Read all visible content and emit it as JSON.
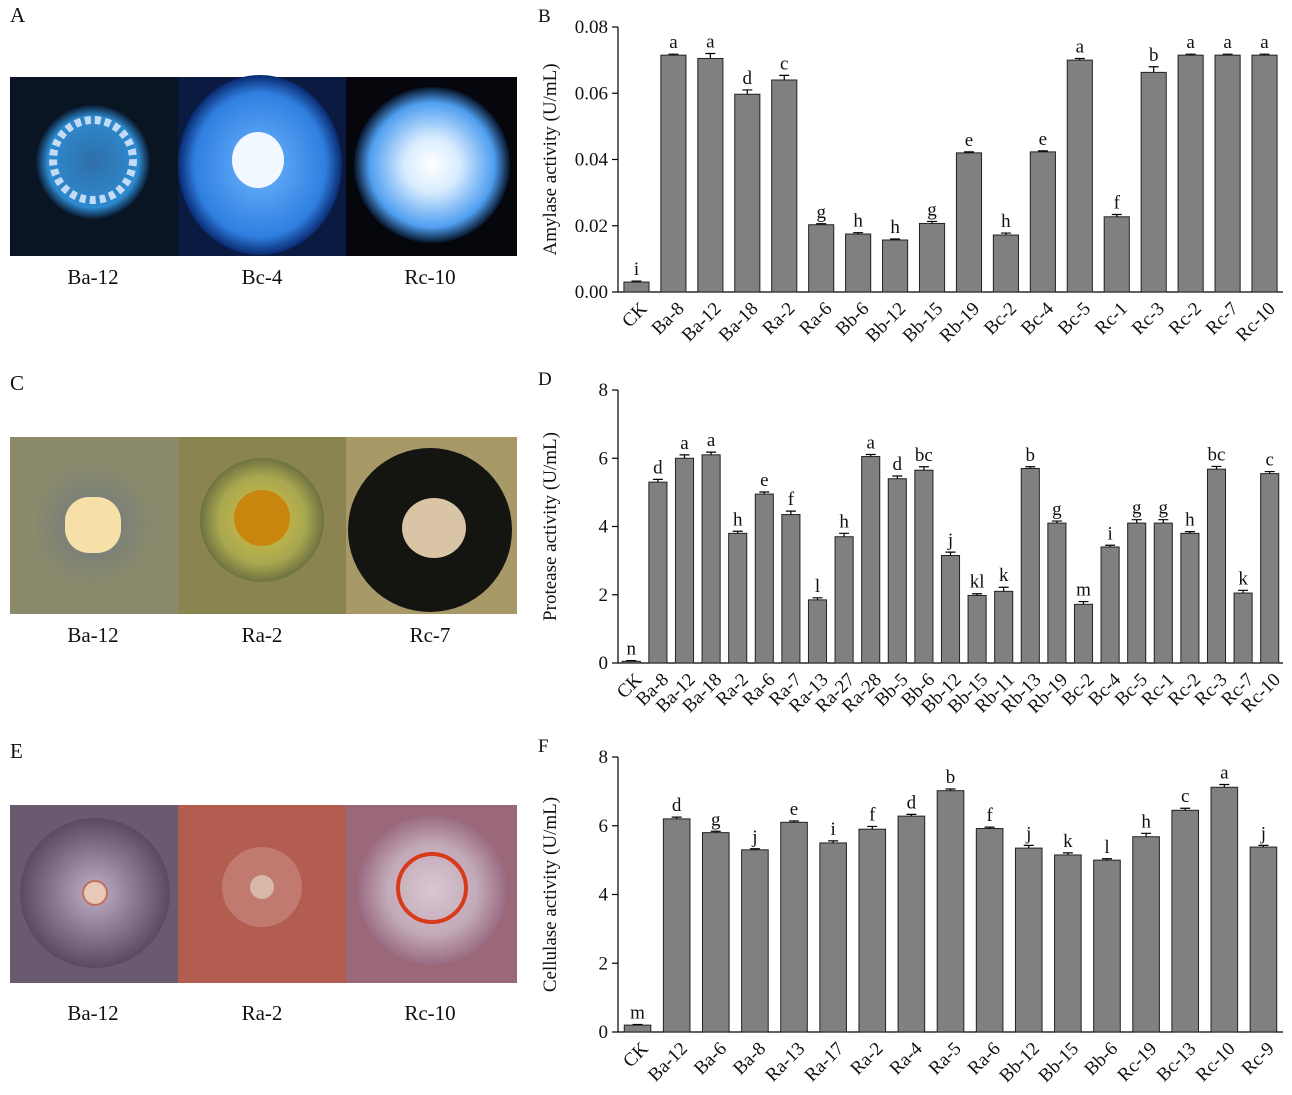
{
  "photo_panels": [
    {
      "label": "A",
      "captions": [
        "Ba-12",
        "Bc-4",
        "Rc-10"
      ]
    },
    {
      "label": "C",
      "captions": [
        "Ba-12",
        "Ra-2",
        "Rc-7"
      ]
    },
    {
      "label": "E",
      "captions": [
        "Ba-12",
        "Ra-2",
        "Rc-10"
      ]
    }
  ],
  "chart_data": [
    {
      "type": "bar",
      "panel": "B",
      "ylabel": "Amylase activity (U/mL)",
      "color": "#808080",
      "categories": [
        "CK",
        "Ba-8",
        "Ba-12",
        "Ba-18",
        "Ra-2",
        "Ra-6",
        "Bb-6",
        "Bb-12",
        "Bb-15",
        "Rb-19",
        "Bc-2",
        "Bc-4",
        "Bc-5",
        "Rc-1",
        "Rc-3",
        "Rc-2",
        "Rc-7",
        "Rc-10"
      ],
      "values": [
        0.003,
        0.0715,
        0.0705,
        0.0597,
        0.064,
        0.0203,
        0.0175,
        0.0157,
        0.0207,
        0.042,
        0.0172,
        0.0423,
        0.07,
        0.0227,
        0.0663,
        0.0715,
        0.0715,
        0.0715
      ],
      "errors": [
        0.0003,
        0.0003,
        0.0015,
        0.0013,
        0.0014,
        0.0003,
        0.0004,
        0.0003,
        0.0006,
        0.0003,
        0.0006,
        0.0003,
        0.0005,
        0.0007,
        0.0017,
        0.0003,
        0.0003,
        0.0003
      ],
      "annotations": [
        "i",
        "a",
        "a",
        "d",
        "c",
        "g",
        "h",
        "h",
        "g",
        "e",
        "h",
        "e",
        "a",
        "f",
        "b",
        "a",
        "a",
        "a"
      ],
      "ylim": [
        0,
        0.08
      ],
      "yticks": [
        {
          "value": 0,
          "label": "0.00"
        },
        0.02,
        0.04,
        0.06,
        0.08
      ]
    },
    {
      "type": "bar",
      "panel": "D",
      "ylabel": "Protease activity (U/mL)",
      "color": "#808080",
      "categories": [
        "CK",
        "Ba-8",
        "Ba-12",
        "Ba-18",
        "Ra-2",
        "Ra-6",
        "Ra-7",
        "Ra-13",
        "Ra-27",
        "Ra-28",
        "Bb-5",
        "Bb-6",
        "Bb-12",
        "Bb-15",
        "Rb-11",
        "Rb-13",
        "Rb-19",
        "Bc-2",
        "Bc-4",
        "Bc-5",
        "Rc-1",
        "Rc-2",
        "Rc-3",
        "Rc-7",
        "Rc-10"
      ],
      "values": [
        0.05,
        5.3,
        6.0,
        6.1,
        3.8,
        4.95,
        4.35,
        1.85,
        3.7,
        6.05,
        5.4,
        5.65,
        3.15,
        1.98,
        2.1,
        5.7,
        4.1,
        1.72,
        3.4,
        4.1,
        4.1,
        3.8,
        5.68,
        2.05,
        5.55
      ],
      "errors": [
        0.02,
        0.08,
        0.1,
        0.08,
        0.06,
        0.06,
        0.1,
        0.06,
        0.1,
        0.06,
        0.08,
        0.1,
        0.1,
        0.05,
        0.12,
        0.05,
        0.06,
        0.08,
        0.05,
        0.1,
        0.1,
        0.05,
        0.08,
        0.08,
        0.06
      ],
      "annotations": [
        "n",
        "d",
        "a",
        "a",
        "h",
        "e",
        "f",
        "l",
        "h",
        "a",
        "d",
        "bc",
        "j",
        "kl",
        "k",
        "b",
        "g",
        "m",
        "i",
        "g",
        "g",
        "h",
        "bc",
        "k",
        "c"
      ],
      "ylim": [
        0,
        8
      ],
      "yticks": [
        0,
        2,
        4,
        6,
        8
      ]
    },
    {
      "type": "bar",
      "panel": "F",
      "ylabel": "Cellulase activity (U/mL)",
      "color": "#808080",
      "categories": [
        "CK",
        "Ba-12",
        "Ba-6",
        "Ba-8",
        "Ra-13",
        "Ra-17",
        "Ra-2",
        "Ra-4",
        "Ra-5",
        "Ra-6",
        "Bb-12",
        "Bb-15",
        "Bb-6",
        "Rc-19",
        "Bc-13",
        "Rc-10",
        "Rc-9"
      ],
      "values": [
        0.2,
        6.2,
        5.8,
        5.3,
        6.1,
        5.5,
        5.9,
        6.28,
        7.02,
        5.92,
        5.35,
        5.15,
        5.0,
        5.68,
        6.45,
        7.12,
        5.38
      ],
      "errors": [
        0.02,
        0.05,
        0.04,
        0.03,
        0.04,
        0.06,
        0.08,
        0.05,
        0.05,
        0.04,
        0.08,
        0.06,
        0.04,
        0.1,
        0.06,
        0.08,
        0.05
      ],
      "annotations": [
        "m",
        "d",
        "g",
        "j",
        "e",
        "i",
        "f",
        "d",
        "b",
        "f",
        "j",
        "k",
        "l",
        "h",
        "c",
        "a",
        "j"
      ],
      "ylim": [
        0,
        8
      ],
      "yticks": [
        0,
        2,
        4,
        6,
        8
      ]
    }
  ]
}
